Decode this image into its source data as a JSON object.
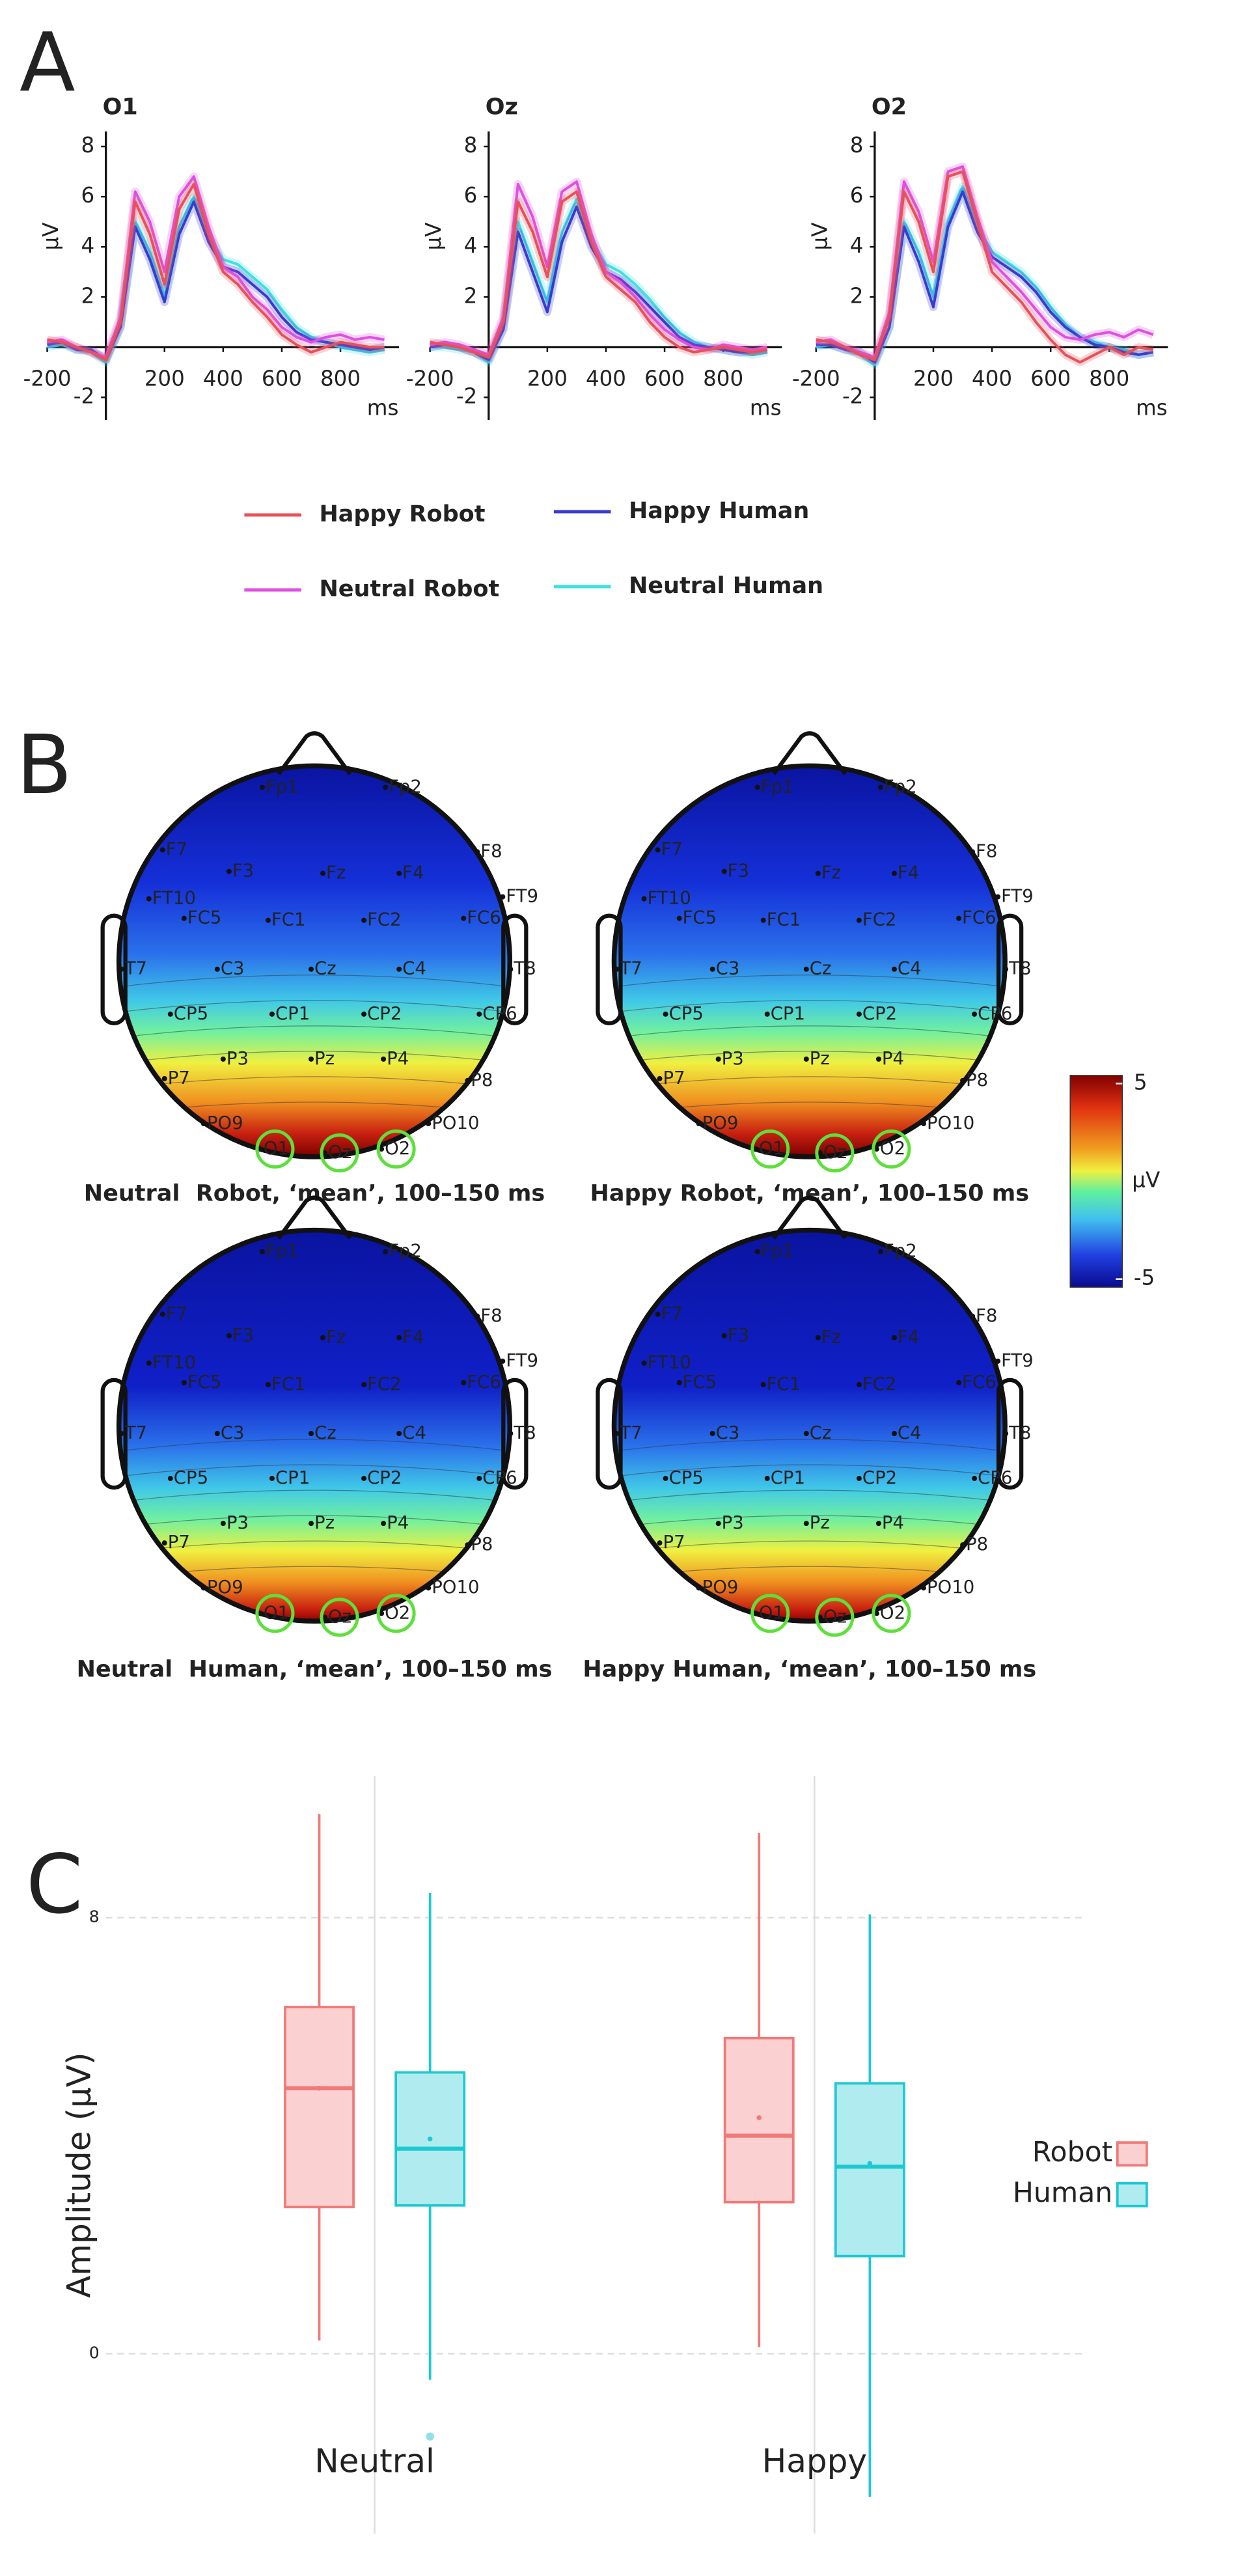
{
  "panel_labels": [
    "A",
    "B",
    "C"
  ],
  "chart_data": [
    {
      "type": "line",
      "title": "O1",
      "ylabel": "µV",
      "xlabel": "ms",
      "x": [
        -200,
        -150,
        -100,
        -50,
        0,
        50,
        100,
        150,
        200,
        250,
        300,
        350,
        400,
        450,
        500,
        550,
        600,
        650,
        700,
        750,
        800,
        850,
        900,
        950
      ],
      "xlim": [
        -200,
        1000
      ],
      "ylim": [
        -2.9,
        8.6
      ],
      "xticks": [
        -200,
        200,
        400,
        600,
        800
      ],
      "yticks": [
        -2,
        2,
        4,
        6,
        8
      ],
      "series": [
        {
          "name": "Happy Robot",
          "color": "#e8505a",
          "values": [
            0.3,
            0.2,
            0,
            -0.2,
            -0.5,
            1,
            5.8,
            4.5,
            2.5,
            5.5,
            6.5,
            4.5,
            3,
            2.5,
            1.8,
            1.2,
            0.5,
            0.1,
            -0.2,
            0,
            0.2,
            0.1,
            0,
            0
          ]
        },
        {
          "name": "Happy Human",
          "color": "#3a3ad0",
          "values": [
            0.1,
            0.2,
            -0.1,
            -0.1,
            -0.5,
            0.8,
            4.8,
            3.5,
            1.8,
            4.5,
            5.8,
            4.2,
            3.2,
            3,
            2.5,
            2,
            1.2,
            0.6,
            0.3,
            0.2,
            0.1,
            0,
            -0.1,
            0
          ]
        },
        {
          "name": "Neutral Robot",
          "color": "#e050e0",
          "values": [
            0.2,
            0.3,
            0,
            -0.2,
            -0.4,
            1.2,
            6.2,
            5,
            3,
            6,
            6.8,
            4.8,
            3.2,
            2.8,
            2,
            1.5,
            0.8,
            0.4,
            0.2,
            0.4,
            0.5,
            0.3,
            0.4,
            0.3
          ]
        },
        {
          "name": "Neutral Human",
          "color": "#40e0e0",
          "values": [
            0,
            0.1,
            -0.1,
            -0.2,
            -0.6,
            0.8,
            5,
            3.8,
            2,
            4.8,
            6,
            4.5,
            3.5,
            3.3,
            2.8,
            2.3,
            1.5,
            0.8,
            0.4,
            0.2,
            0,
            -0.1,
            -0.2,
            -0.1
          ]
        }
      ]
    },
    {
      "type": "line",
      "title": "Oz",
      "ylabel": "µV",
      "xlabel": "ms",
      "x": [
        -200,
        -150,
        -100,
        -50,
        0,
        50,
        100,
        150,
        200,
        250,
        300,
        350,
        400,
        450,
        500,
        550,
        600,
        650,
        700,
        750,
        800,
        850,
        900,
        950
      ],
      "xlim": [
        -200,
        1000
      ],
      "ylim": [
        -2.9,
        8.6
      ],
      "xticks": [
        -200,
        200,
        400,
        600,
        800
      ],
      "yticks": [
        -2,
        2,
        4,
        6,
        8
      ],
      "series": [
        {
          "name": "Happy Robot",
          "color": "#e8505a",
          "values": [
            0.2,
            0.1,
            0,
            -0.2,
            -0.4,
            1,
            5.8,
            4.6,
            2.8,
            5.8,
            6.2,
            4.2,
            2.8,
            2.3,
            1.8,
            1,
            0.4,
            0,
            -0.2,
            -0.1,
            0,
            -0.1,
            -0.2,
            -0.1
          ]
        },
        {
          "name": "Happy Human",
          "color": "#3a3ad0",
          "values": [
            0,
            0.1,
            0,
            -0.2,
            -0.5,
            0.7,
            4.6,
            3,
            1.4,
            4.2,
            5.6,
            4,
            3,
            2.7,
            2.2,
            1.6,
            1,
            0.4,
            0.1,
            0,
            -0.1,
            -0.2,
            -0.2,
            -0.1
          ]
        },
        {
          "name": "Neutral Robot",
          "color": "#e050e0",
          "values": [
            0.1,
            0.2,
            0.1,
            -0.1,
            -0.3,
            1.2,
            6.5,
            5.2,
            3.2,
            6.2,
            6.6,
            4.5,
            3,
            2.6,
            2,
            1.3,
            0.7,
            0.3,
            0,
            -0.1,
            0.1,
            0,
            -0.1,
            0
          ]
        },
        {
          "name": "Neutral Human",
          "color": "#40e0e0",
          "values": [
            0,
            0,
            -0.1,
            -0.2,
            -0.6,
            0.8,
            5,
            3.4,
            1.8,
            4.6,
            5.9,
            4.3,
            3.3,
            3,
            2.5,
            1.9,
            1.2,
            0.6,
            0.2,
            0,
            -0.1,
            -0.2,
            -0.3,
            -0.2
          ]
        }
      ]
    },
    {
      "type": "line",
      "title": "O2",
      "ylabel": "µV",
      "xlabel": "ms",
      "x": [
        -200,
        -150,
        -100,
        -50,
        0,
        50,
        100,
        150,
        200,
        250,
        300,
        350,
        400,
        450,
        500,
        550,
        600,
        650,
        700,
        750,
        800,
        850,
        900,
        950
      ],
      "xlim": [
        -200,
        1000
      ],
      "ylim": [
        -2.9,
        8.6
      ],
      "xticks": [
        -200,
        200,
        400,
        600,
        800
      ],
      "yticks": [
        -2,
        2,
        4,
        6,
        8
      ],
      "series": [
        {
          "name": "Happy Robot",
          "color": "#e8505a",
          "values": [
            0.3,
            0.2,
            0,
            -0.3,
            -0.5,
            1.2,
            6.2,
            5,
            3,
            6.8,
            7,
            5,
            3,
            2.4,
            1.8,
            1,
            0.3,
            -0.3,
            -0.6,
            -0.3,
            0,
            -0.3,
            0,
            -0.1
          ]
        },
        {
          "name": "Happy Human",
          "color": "#3a3ad0",
          "values": [
            0.1,
            0.1,
            -0.1,
            -0.2,
            -0.6,
            0.8,
            4.8,
            3.4,
            1.6,
            4.8,
            6.2,
            4.6,
            3.6,
            3.2,
            2.8,
            2.2,
            1.4,
            0.8,
            0.4,
            0.1,
            0,
            -0.2,
            -0.3,
            -0.2
          ]
        },
        {
          "name": "Neutral Robot",
          "color": "#e050e0",
          "values": [
            0.2,
            0.3,
            0,
            -0.2,
            -0.4,
            1.4,
            6.6,
            5.4,
            3.4,
            7,
            7.2,
            5.2,
            3.4,
            2.8,
            2.2,
            1.5,
            0.8,
            0.4,
            0.3,
            0.5,
            0.6,
            0.4,
            0.7,
            0.5
          ]
        },
        {
          "name": "Neutral Human",
          "color": "#40e0e0",
          "values": [
            0,
            0.1,
            -0.1,
            -0.3,
            -0.7,
            0.8,
            5,
            3.8,
            2,
            5,
            6.4,
            4.8,
            3.8,
            3.4,
            3,
            2.4,
            1.6,
            0.9,
            0.4,
            0.2,
            0,
            -0.1,
            -0.3,
            -0.2
          ]
        }
      ]
    },
    {
      "type": "topomap",
      "maps": [
        {
          "title": "Neutral  Robot, ‘mean’, 100–150 ms"
        },
        {
          "title": "Happy Robot, ‘mean’, 100–150 ms"
        },
        {
          "title": "Neutral  Human, ‘mean’, 100–150 ms"
        },
        {
          "title": "Happy Human, ‘mean’, 100–150 ms"
        }
      ],
      "electrodes": [
        "Fp1",
        "Fp2",
        "F7",
        "F3",
        "Fz",
        "F4",
        "F8",
        "FT10",
        "FT9",
        "FC5",
        "FC1",
        "FC2",
        "FC6",
        "T7",
        "C3",
        "Cz",
        "C4",
        "T8",
        "CP5",
        "CP1",
        "CP2",
        "CP6",
        "P7",
        "P3",
        "Pz",
        "P4",
        "P8",
        "PO9",
        "PO10",
        "O1",
        "Oz",
        "O2"
      ],
      "colorbar": {
        "label": "µV",
        "lim": [
          -5,
          5
        ],
        "ticks": [
          5,
          -5
        ]
      }
    },
    {
      "type": "box",
      "ylabel": "Amplitude (µV)",
      "categories": [
        "Neutral",
        "Happy"
      ],
      "ylim": [
        -3.3,
        10.6
      ],
      "yticks": [
        0,
        8
      ],
      "grid": true,
      "series": [
        {
          "name": "Robot",
          "color": "#f07a78",
          "values": [
            {
              "min": 0.24,
              "q1": 2.69,
              "median": 4.87,
              "q3": 6.36,
              "max": 9.9,
              "mean": 4.87
            },
            {
              "min": 0.12,
              "q1": 2.78,
              "median": 4.0,
              "q3": 5.79,
              "max": 9.55,
              "mean": 4.33
            }
          ],
          "outliers": [
            [],
            []
          ]
        },
        {
          "name": "Human",
          "color": "#1ec8d0",
          "values": [
            {
              "min": -0.48,
              "q1": 2.72,
              "median": 3.76,
              "q3": 5.16,
              "max": 8.45,
              "mean": 3.94
            },
            {
              "min": -2.63,
              "q1": 1.79,
              "median": 3.43,
              "q3": 4.96,
              "max": 8.06,
              "mean": 3.49
            }
          ],
          "outliers": [
            [
              -1.52
            ],
            []
          ]
        }
      ]
    }
  ]
}
